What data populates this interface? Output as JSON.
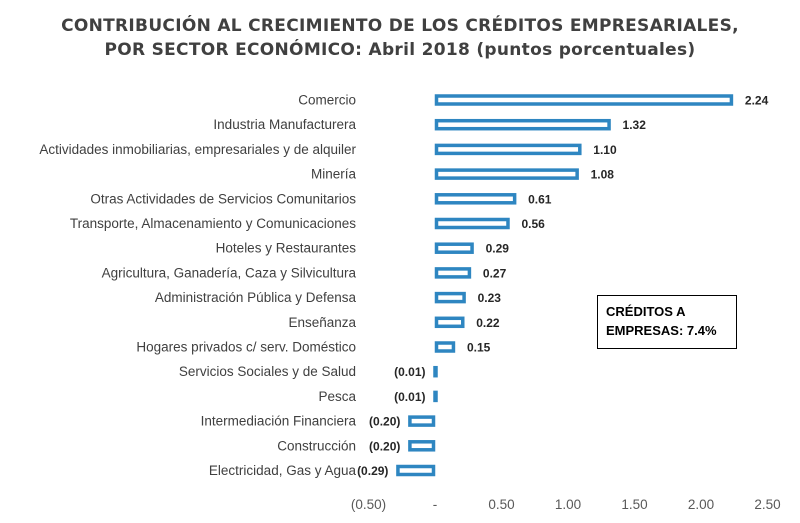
{
  "chart_data": {
    "type": "bar",
    "orientation": "horizontal",
    "title_line1": "CONTRIBUCIÓN AL CRECIMIENTO DE LOS CRÉDITOS EMPRESARIALES,",
    "title_line2": "POR SECTOR ECONÓMICO: Abril 2018 (puntos porcentuales)",
    "categories": [
      "Comercio",
      "Industria Manufacturera",
      "Actividades inmobiliarias, empresariales y de alquiler",
      "Minería",
      "Otras Actividades de Servicios Comunitarios",
      "Transporte, Almacenamiento y Comunicaciones",
      "Hoteles y Restaurantes",
      "Agricultura, Ganadería, Caza y Silvicultura",
      "Administración Pública y Defensa",
      "Enseñanza",
      "Hogares privados c/ serv. Doméstico",
      "Servicios Sociales y de Salud",
      "Pesca",
      "Intermediación Financiera",
      "Construcción",
      "Electricidad, Gas y Agua"
    ],
    "values": [
      2.24,
      1.32,
      1.1,
      1.08,
      0.61,
      0.56,
      0.29,
      0.27,
      0.23,
      0.22,
      0.15,
      -0.01,
      -0.01,
      -0.2,
      -0.2,
      -0.29
    ],
    "value_labels": [
      "2.24",
      "1.32",
      "1.10",
      "1.08",
      "0.61",
      "0.56",
      "0.29",
      "0.27",
      "0.23",
      "0.22",
      "0.15",
      "(0.01)",
      "(0.01)",
      "(0.20)",
      "(0.20)",
      "(0.29)"
    ],
    "xlim": [
      -0.5,
      2.5
    ],
    "x_ticks": [
      -0.5,
      0,
      0.5,
      1.0,
      1.5,
      2.0,
      2.5
    ],
    "x_tick_labels": [
      "(0.50)",
      "-",
      "0.50",
      "1.00",
      "1.50",
      "2.00",
      "2.50"
    ],
    "grid": false,
    "bar_color": "#2E86C1",
    "callout_line1": "CRÉDITOS A",
    "callout_line2": "EMPRESAS: 7.4%"
  }
}
